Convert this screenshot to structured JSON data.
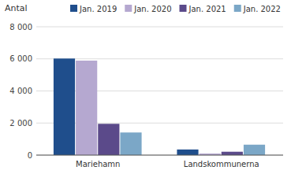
{
  "chart_data": {
    "type": "bar",
    "ylabel": "Antal",
    "categories": [
      "Mariehamn",
      "Landskommunerna"
    ],
    "series": [
      {
        "name": "Jan. 2019",
        "color": "#1F4E8C",
        "values": [
          6020,
          350
        ]
      },
      {
        "name": "Jan. 2020",
        "color": "#B5A8D0",
        "values": [
          5890,
          100
        ]
      },
      {
        "name": "Jan. 2021",
        "color": "#5B4A8A",
        "values": [
          1950,
          210
        ]
      },
      {
        "name": "Jan. 2022",
        "color": "#7BA7C7",
        "values": [
          1410,
          650
        ]
      }
    ],
    "ylim": [
      0,
      8000
    ],
    "yticks": [
      0,
      {
        "value": 2000,
        "label": "2 000"
      },
      {
        "value": 4000,
        "label": "4 000"
      },
      {
        "value": 6000,
        "label": "6 000"
      },
      {
        "value": 8000,
        "label": "8 000"
      }
    ],
    "grid": true,
    "legend": "top"
  }
}
